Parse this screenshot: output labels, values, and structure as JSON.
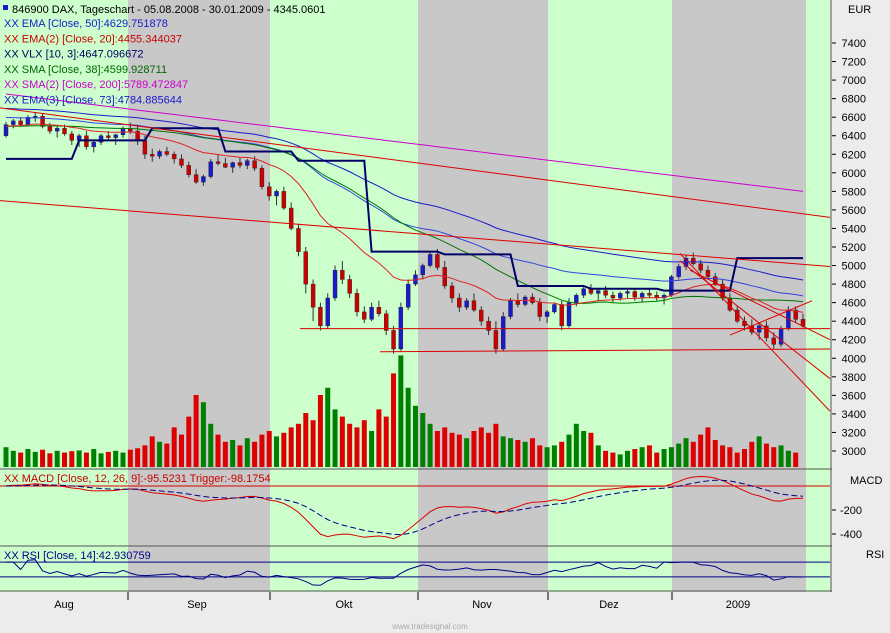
{
  "header": {
    "title": "846900  DAX, Tageschart - 05.08.2008 - 30.01.2009 - 4345.0601",
    "legend": [
      {
        "text": "EMA [Close, 50]:4629.751878",
        "color": "#1a1acc"
      },
      {
        "text": "EMA(2) [Close, 20]:4455.344037",
        "color": "#cc0000"
      },
      {
        "text": "VLX [10, 3]:4647.096672",
        "color": "#000060"
      },
      {
        "text": "SMA [Close, 38]:4599.928711",
        "color": "#006600"
      },
      {
        "text": "SMA(2) [Close, 200]:5789.472847",
        "color": "#cc00cc"
      },
      {
        "text": "EMA(3) [Close, 73]:4784.885644",
        "color": "#1a1acc"
      }
    ],
    "legend_prefix": "XX"
  },
  "axis": {
    "currency": "EUR",
    "price_ticks": [
      3000,
      3200,
      3400,
      3600,
      3800,
      4000,
      4200,
      4400,
      4600,
      4800,
      5000,
      5200,
      5400,
      5600,
      5800,
      6000,
      6200,
      6400,
      6600,
      6800,
      7000,
      7200,
      7400
    ],
    "macd_label": "MACD",
    "macd_ticks": [
      -200,
      -400
    ],
    "rsi_label": "RSI",
    "months": [
      "Aug",
      "Sep",
      "Okt",
      "Nov",
      "Dez",
      "2009"
    ]
  },
  "macd": {
    "title": "MACD [Close, 12, 26, 9]:-95.5231 Trigger:-98.1754"
  },
  "rsi": {
    "title": "RSI [Close, 14]:42.930759"
  },
  "footer": {
    "watermark": "www.tradesignal.com"
  },
  "colors": {
    "up": "#1a1acc",
    "down": "#cc0000",
    "bg_green": "#ccffcc",
    "bg_gray": "#c8c8c8"
  },
  "chart_data": {
    "type": "candlestick",
    "title": "846900  DAX, Tageschart",
    "date_range": [
      "05.08.2008",
      "30.01.2009"
    ],
    "last_close": 4345.0601,
    "ylim": [
      2800,
      7600
    ],
    "candles": [
      [
        6400,
        6550,
        6380,
        6520
      ],
      [
        6520,
        6580,
        6480,
        6560
      ],
      [
        6560,
        6600,
        6500,
        6520
      ],
      [
        6520,
        6620,
        6500,
        6600
      ],
      [
        6600,
        6650,
        6550,
        6610
      ],
      [
        6610,
        6640,
        6480,
        6500
      ],
      [
        6500,
        6540,
        6420,
        6450
      ],
      [
        6450,
        6500,
        6380,
        6480
      ],
      [
        6480,
        6520,
        6400,
        6420
      ],
      [
        6420,
        6450,
        6300,
        6350
      ],
      [
        6350,
        6420,
        6280,
        6400
      ],
      [
        6400,
        6450,
        6250,
        6280
      ],
      [
        6280,
        6350,
        6220,
        6330
      ],
      [
        6330,
        6420,
        6300,
        6400
      ],
      [
        6400,
        6450,
        6350,
        6380
      ],
      [
        6380,
        6420,
        6300,
        6410
      ],
      [
        6410,
        6500,
        6380,
        6480
      ],
      [
        6480,
        6540,
        6420,
        6450
      ],
      [
        6450,
        6520,
        6300,
        6350
      ],
      [
        6350,
        6400,
        6150,
        6200
      ],
      [
        6200,
        6260,
        6120,
        6180
      ],
      [
        6180,
        6250,
        6150,
        6230
      ],
      [
        6230,
        6280,
        6180,
        6200
      ],
      [
        6200,
        6230,
        6100,
        6150
      ],
      [
        6150,
        6200,
        6050,
        6080
      ],
      [
        6080,
        6120,
        5950,
        5980
      ],
      [
        5980,
        6040,
        5880,
        5900
      ],
      [
        5900,
        5980,
        5860,
        5960
      ],
      [
        5960,
        6150,
        5940,
        6120
      ],
      [
        6120,
        6200,
        6080,
        6100
      ],
      [
        6100,
        6160,
        6050,
        6060
      ],
      [
        6060,
        6120,
        6000,
        6110
      ],
      [
        6110,
        6160,
        6050,
        6080
      ],
      [
        6080,
        6150,
        6040,
        6130
      ],
      [
        6130,
        6180,
        6020,
        6050
      ],
      [
        6050,
        6080,
        5820,
        5850
      ],
      [
        5850,
        5900,
        5700,
        5750
      ],
      [
        5750,
        5820,
        5650,
        5800
      ],
      [
        5800,
        5850,
        5600,
        5620
      ],
      [
        5620,
        5680,
        5380,
        5400
      ],
      [
        5400,
        5450,
        5100,
        5150
      ],
      [
        5150,
        5200,
        4700,
        4800
      ],
      [
        4800,
        4850,
        4400,
        4550
      ],
      [
        4550,
        4600,
        4300,
        4350
      ],
      [
        4350,
        4700,
        4320,
        4650
      ],
      [
        4650,
        5000,
        4620,
        4950
      ],
      [
        4950,
        5050,
        4800,
        4850
      ],
      [
        4850,
        4900,
        4650,
        4700
      ],
      [
        4700,
        4750,
        4450,
        4500
      ],
      [
        4500,
        4560,
        4380,
        4420
      ],
      [
        4420,
        4600,
        4400,
        4550
      ],
      [
        4550,
        4620,
        4450,
        4480
      ],
      [
        4480,
        4520,
        4250,
        4300
      ],
      [
        4300,
        4350,
        4050,
        4100
      ],
      [
        4100,
        4600,
        4080,
        4550
      ],
      [
        4550,
        4850,
        4520,
        4800
      ],
      [
        4800,
        4950,
        4780,
        4900
      ],
      [
        4900,
        5020,
        4850,
        5000
      ],
      [
        5000,
        5150,
        4980,
        5120
      ],
      [
        5120,
        5180,
        4950,
        4980
      ],
      [
        4980,
        5050,
        4750,
        4780
      ],
      [
        4780,
        4820,
        4600,
        4650
      ],
      [
        4650,
        4700,
        4500,
        4550
      ],
      [
        4550,
        4650,
        4520,
        4620
      ],
      [
        4620,
        4700,
        4500,
        4520
      ],
      [
        4520,
        4560,
        4350,
        4400
      ],
      [
        4400,
        4450,
        4250,
        4300
      ],
      [
        4300,
        4400,
        4050,
        4100
      ],
      [
        4100,
        4500,
        4080,
        4450
      ],
      [
        4450,
        4650,
        4420,
        4620
      ],
      [
        4620,
        4700,
        4550,
        4580
      ],
      [
        4580,
        4680,
        4560,
        4660
      ],
      [
        4660,
        4700,
        4580,
        4600
      ],
      [
        4600,
        4650,
        4400,
        4450
      ],
      [
        4450,
        4520,
        4380,
        4500
      ],
      [
        4500,
        4600,
        4480,
        4580
      ],
      [
        4580,
        4620,
        4300,
        4350
      ],
      [
        4350,
        4650,
        4330,
        4600
      ],
      [
        4600,
        4700,
        4560,
        4680
      ],
      [
        4680,
        4780,
        4650,
        4750
      ],
      [
        4750,
        4800,
        4680,
        4700
      ],
      [
        4700,
        4760,
        4620,
        4730
      ],
      [
        4730,
        4780,
        4650,
        4680
      ],
      [
        4680,
        4720,
        4600,
        4650
      ],
      [
        4650,
        4720,
        4620,
        4700
      ],
      [
        4700,
        4760,
        4650,
        4720
      ],
      [
        4720,
        4750,
        4620,
        4660
      ],
      [
        4660,
        4720,
        4600,
        4700
      ],
      [
        4700,
        4760,
        4650,
        4680
      ],
      [
        4680,
        4720,
        4620,
        4650
      ],
      [
        4650,
        4700,
        4580,
        4680
      ],
      [
        4680,
        4900,
        4660,
        4880
      ],
      [
        4880,
        5020,
        4850,
        4990
      ],
      [
        4990,
        5120,
        4950,
        5080
      ],
      [
        5080,
        5140,
        5000,
        5020
      ],
      [
        5020,
        5060,
        4920,
        4950
      ],
      [
        4950,
        5000,
        4850,
        4880
      ],
      [
        4880,
        4920,
        4780,
        4800
      ],
      [
        4800,
        4850,
        4620,
        4650
      ],
      [
        4650,
        4700,
        4500,
        4520
      ],
      [
        4520,
        4560,
        4380,
        4400
      ],
      [
        4400,
        4450,
        4300,
        4350
      ],
      [
        4350,
        4420,
        4250,
        4280
      ],
      [
        4280,
        4380,
        4200,
        4350
      ],
      [
        4350,
        4400,
        4180,
        4220
      ],
      [
        4220,
        4280,
        4100,
        4150
      ],
      [
        4150,
        4350,
        4120,
        4320
      ],
      [
        4320,
        4560,
        4300,
        4520
      ],
      [
        4520,
        4560,
        4380,
        4420
      ],
      [
        4420,
        4480,
        4330,
        4345
      ]
    ],
    "volume": [
      55,
      45,
      40,
      50,
      42,
      48,
      38,
      45,
      40,
      44,
      46,
      40,
      50,
      38,
      42,
      45,
      40,
      48,
      52,
      60,
      85,
      70,
      65,
      110,
      90,
      140,
      200,
      180,
      120,
      90,
      70,
      75,
      60,
      80,
      70,
      90,
      100,
      85,
      95,
      110,
      120,
      150,
      130,
      200,
      220,
      160,
      140,
      120,
      110,
      130,
      100,
      160,
      140,
      260,
      310,
      220,
      170,
      150,
      120,
      100,
      110,
      95,
      90,
      80,
      100,
      110,
      95,
      120,
      85,
      80,
      75,
      70,
      80,
      60,
      55,
      60,
      70,
      90,
      120,
      100,
      95,
      60,
      45,
      40,
      35,
      45,
      50,
      55,
      60,
      40,
      50,
      55,
      65,
      80,
      70,
      90,
      110,
      75,
      60,
      55,
      40,
      50,
      70,
      85,
      65,
      55,
      60,
      45,
      40
    ]
  }
}
